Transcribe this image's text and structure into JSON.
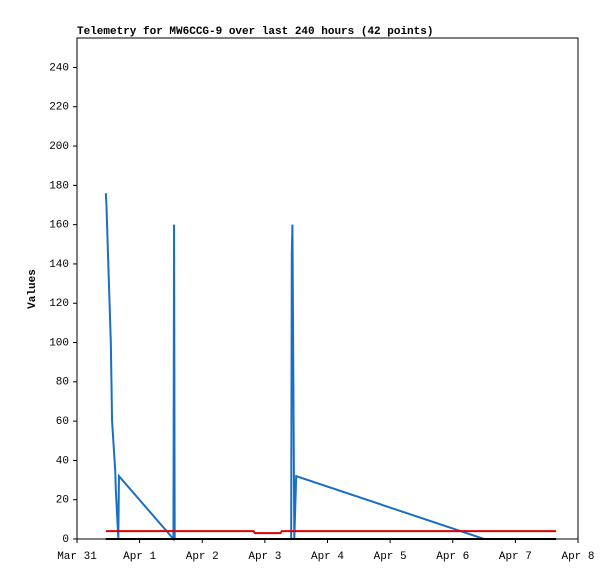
{
  "chart_data": {
    "type": "line",
    "title": "Telemetry for MW6CCG-9 over last 240 hours (42 points)",
    "y_label": "Values",
    "xlim": [
      0,
      8
    ],
    "xticks": [
      {
        "value": 0,
        "label": "Mar 31"
      },
      {
        "value": 1,
        "label": "Apr 1"
      },
      {
        "value": 2,
        "label": "Apr 2"
      },
      {
        "value": 3,
        "label": "Apr 3"
      },
      {
        "value": 4,
        "label": "Apr 4"
      },
      {
        "value": 5,
        "label": "Apr 5"
      },
      {
        "value": 6,
        "label": "Apr 6"
      },
      {
        "value": 7,
        "label": "Apr 7"
      },
      {
        "value": 8,
        "label": "Apr 8"
      }
    ],
    "ylim": [
      0,
      255
    ],
    "yticks": [
      0,
      20,
      40,
      60,
      80,
      100,
      120,
      140,
      160,
      180,
      200,
      220,
      240
    ],
    "grid": false,
    "series": [
      {
        "color": "#1a6fc4",
        "x": [
          0.46,
          0.47,
          0.5,
          0.54,
          0.56,
          0.61,
          0.62,
          0.66,
          0.67,
          1.54,
          1.55,
          1.56,
          3.42,
          3.43,
          3.44,
          3.47,
          3.5,
          6.5,
          7.65
        ],
        "values": [
          176,
          170,
          140,
          100,
          60,
          35,
          25,
          0,
          32,
          0,
          160,
          0,
          0,
          145,
          160,
          0,
          32,
          0,
          0
        ]
      },
      {
        "color": "#e00000",
        "x": [
          0.46,
          2.82,
          2.84,
          3.25,
          3.27,
          7.65
        ],
        "values": [
          4,
          4,
          3,
          3,
          4,
          4
        ]
      },
      {
        "color": "#000000",
        "x": [
          0.46,
          7.65
        ],
        "values": [
          0,
          0
        ]
      }
    ]
  }
}
